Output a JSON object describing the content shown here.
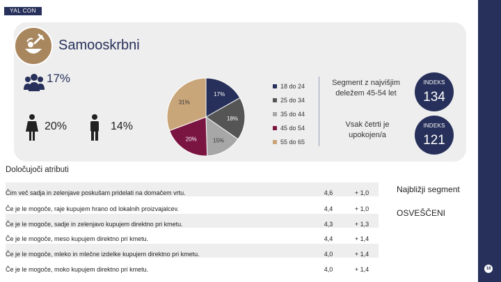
{
  "brand": "YAL CON",
  "page_number": "18",
  "segment": {
    "title": "Samooskrbni",
    "icon": "garden-tools-icon",
    "share": "17%",
    "female_pct": "20%",
    "male_pct": "14%"
  },
  "chart_data": {
    "type": "pie",
    "title": "",
    "slices": [
      {
        "label": "18 do 24",
        "value": 17,
        "display": "17%",
        "color": "#27305a"
      },
      {
        "label": "25 do 34",
        "value": 18,
        "display": "18%",
        "color": "#555555"
      },
      {
        "label": "35 do 44",
        "value": 15,
        "display": "15%",
        "color": "#a7a7a7"
      },
      {
        "label": "45 do 54",
        "value": 20,
        "display": "20%",
        "color": "#7a1440"
      },
      {
        "label": "55 do 65",
        "value": 31,
        "display": "31%",
        "color": "#c9a57a"
      }
    ],
    "legend_position": "right"
  },
  "info": {
    "top_segment": "Segment z najvišjim deležem 45-54 let",
    "bottom_segment": "Vsak četrti je upokojen/a"
  },
  "badges": [
    {
      "label": "INDEKS",
      "value": "134"
    },
    {
      "label": "INDEKS",
      "value": "121"
    }
  ],
  "attributes": {
    "title": "Določujoči atributi",
    "rows": [
      {
        "text": "Čim več sadja in zelenjave poskušam pridelati na domačem vrtu.",
        "index": "4,6",
        "diff": "+ 1,0"
      },
      {
        "text": "Če je le mogoče, raje kupujem hrano od lokalnih proizvajalcev.",
        "index": "4,4",
        "diff": "+ 1,0"
      },
      {
        "text": "Če je le mogoče, sadje in zelenjavo kupujem direktno pri kmetu.",
        "index": "4,3",
        "diff": "+ 1,3"
      },
      {
        "text": "Če je le mogoče, meso kupujem direktno pri kmetu.",
        "index": "4,4",
        "diff": "+ 1,4"
      },
      {
        "text": "Če je le mogoče, mleko in mlečne izdelke kupujem direktno pri kmetu.",
        "index": "4,0",
        "diff": "+ 1,4"
      },
      {
        "text": "Če je le mogoče, moko kupujem direktno pri kmetu.",
        "index": "4,0",
        "diff": "+ 1,4"
      }
    ],
    "nearest_label": "Najbližji segment",
    "nearest_value": "OSVEŠČENI"
  }
}
